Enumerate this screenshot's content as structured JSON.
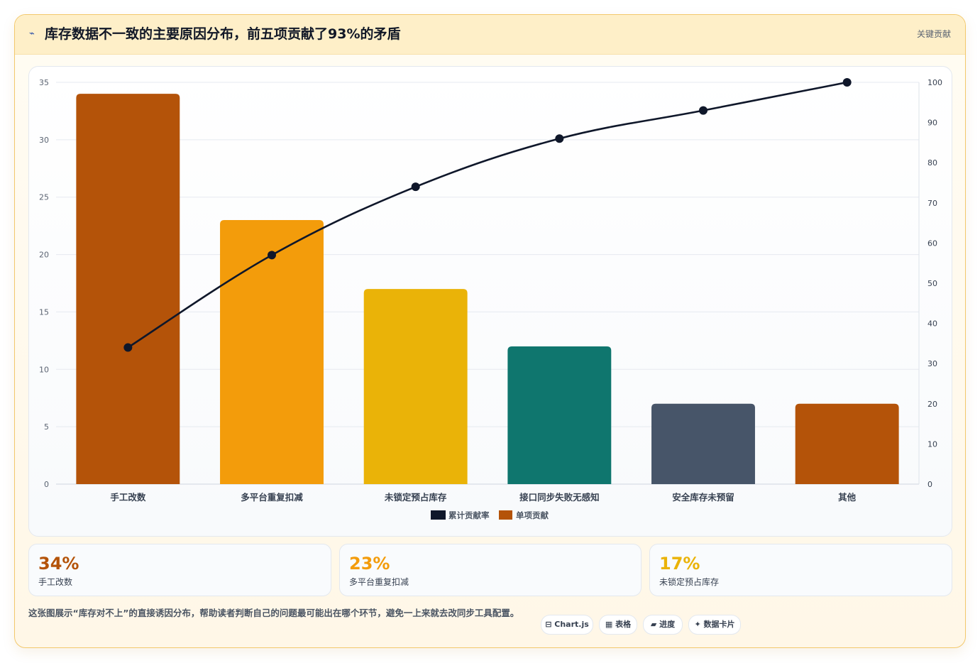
{
  "header": {
    "icon": "⌁",
    "title": "库存数据不一致的主要原因分布，前五项贡献了93%的矛盾",
    "tag": "关键贡献"
  },
  "chart_data": {
    "type": "bar",
    "categories": [
      "手工改数",
      "多平台重复扣减",
      "未锁定预占库存",
      "接口同步失败无感知",
      "安全库存未预留",
      "其他"
    ],
    "series": [
      {
        "name": "单项贡献",
        "type": "bar",
        "axis": "left",
        "values": [
          34,
          23,
          17,
          12,
          7,
          7
        ],
        "colors": [
          "#b45309",
          "#f39c0b",
          "#eab308",
          "#0f766e",
          "#475569",
          "#b45309"
        ]
      },
      {
        "name": "累计贡献率",
        "type": "line",
        "axis": "right",
        "values": [
          34,
          57,
          74,
          86,
          93,
          100
        ],
        "color": "#0f172a"
      }
    ],
    "left_axis": {
      "min": 0,
      "max": 35,
      "ticks": [
        "0",
        "5",
        "10",
        "15",
        "20",
        "25",
        "30",
        "35"
      ]
    },
    "right_axis": {
      "min": 0,
      "max": 100,
      "ticks": [
        "0",
        "10",
        "20",
        "30",
        "40",
        "50",
        "60",
        "70",
        "80",
        "90",
        "100"
      ]
    },
    "legend": [
      "累计贡献率",
      "单项贡献"
    ],
    "legend_position": "bottom",
    "grid": true
  },
  "stats": [
    {
      "value": "34%",
      "label": "手工改数",
      "color": "#b45309"
    },
    {
      "value": "23%",
      "label": "多平台重复扣减",
      "color": "#f39c0b"
    },
    {
      "value": "17%",
      "label": "未锁定预占库存",
      "color": "#eab308"
    }
  ],
  "footer": {
    "text": "这张图展示“库存对不上”的直接诱因分布，帮助读者判断自己的问题最可能出在哪个环节，避免一上来就去改同步工具配置。",
    "chips": [
      "⊟ Chart.js",
      "▦ 表格",
      "▰ 进度",
      "✦ 数据卡片"
    ]
  }
}
